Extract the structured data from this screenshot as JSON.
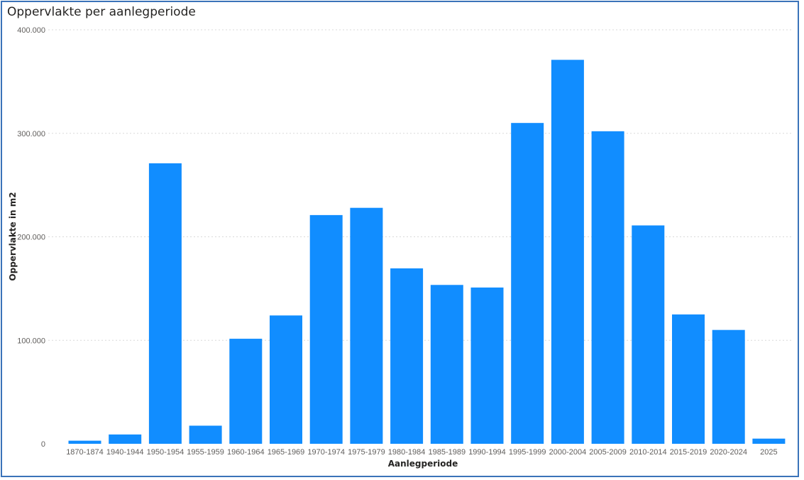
{
  "chart_data": {
    "type": "bar",
    "title": "Oppervlakte per aanlegperiode",
    "xlabel": "Aanlegperiode",
    "ylabel": "Oppervlakte in m2",
    "ylim": [
      0,
      400000
    ],
    "y_ticks": [
      {
        "value": 0,
        "label": "0"
      },
      {
        "value": 100000,
        "label": "100.000"
      },
      {
        "value": 200000,
        "label": "200.000"
      },
      {
        "value": 300000,
        "label": "300.000"
      },
      {
        "value": 400000,
        "label": "400.000"
      }
    ],
    "grid": true,
    "bar_color": "#118dff",
    "categories": [
      "1870-1874",
      "1940-1944",
      "1950-1954",
      "1955-1959",
      "1960-1964",
      "1965-1969",
      "1970-1974",
      "1975-1979",
      "1980-1984",
      "1985-1989",
      "1990-1994",
      "1995-1999",
      "2000-2004",
      "2005-2009",
      "2010-2014",
      "2015-2019",
      "2020-2024",
      "2025"
    ],
    "values": [
      3000,
      9000,
      271000,
      17500,
      101500,
      124000,
      221000,
      228000,
      169500,
      153500,
      151000,
      310000,
      371000,
      302000,
      211000,
      125000,
      110000,
      5000
    ]
  }
}
